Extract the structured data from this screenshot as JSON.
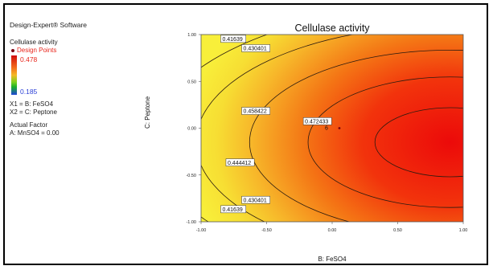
{
  "legend": {
    "software": "Design-Expert® Software",
    "response": "Cellulase activity",
    "design_points_label": "Design Points",
    "max_value": "0.478",
    "min_value": "0.185",
    "x1_def": "X1 = B: FeSO4",
    "x2_def": "X2 = C: Peptone",
    "actual_factor_heading": "Actual Factor",
    "actual_factor_value": "A: MnSO4 = 0.00",
    "colors": {
      "high": "#d10d0d",
      "low": "#1f45d6",
      "design_point": "#7a0010"
    }
  },
  "chart_data": {
    "type": "contour",
    "title": "Cellulase activity",
    "xlabel": "B: FeSO4",
    "ylabel": "C: Peptone",
    "xlim": [
      -1.0,
      1.0
    ],
    "ylim": [
      -1.0,
      1.0
    ],
    "x_ticks": [
      "-1.00",
      "-0.50",
      "0.00",
      "0.50",
      "1.00"
    ],
    "y_ticks": [
      "1.00",
      "0.50",
      "0.00",
      "-0.50",
      "-1.00"
    ],
    "optimum": {
      "x": 0.9,
      "y": -0.15
    },
    "contour_levels": [
      {
        "label": "0.472433",
        "value": 0.472433,
        "label_pos": {
          "x": -0.22,
          "y": 0.07
        }
      },
      {
        "label": "0.458422",
        "value": 0.458422,
        "label_pos": {
          "x": -0.69,
          "y": 0.18
        }
      },
      {
        "label": "0.444412",
        "value": 0.444412,
        "label_pos": {
          "x": -0.81,
          "y": -0.37
        }
      },
      {
        "label": "0.430401",
        "value": 0.430401,
        "label_pos": {
          "x": -0.69,
          "y": 0.85
        }
      },
      {
        "label": "0.430401",
        "value": 0.430401,
        "label_pos": {
          "x": -0.69,
          "y": -0.77
        }
      },
      {
        "label": "0.41639",
        "value": 0.41639,
        "label_pos": {
          "x": -0.85,
          "y": 0.95
        }
      },
      {
        "label": "0.41639",
        "value": 0.41639,
        "label_pos": {
          "x": -0.85,
          "y": -0.87
        }
      }
    ],
    "design_point_label": "6",
    "design_point": {
      "x": 0.0,
      "y": 0.0
    }
  }
}
